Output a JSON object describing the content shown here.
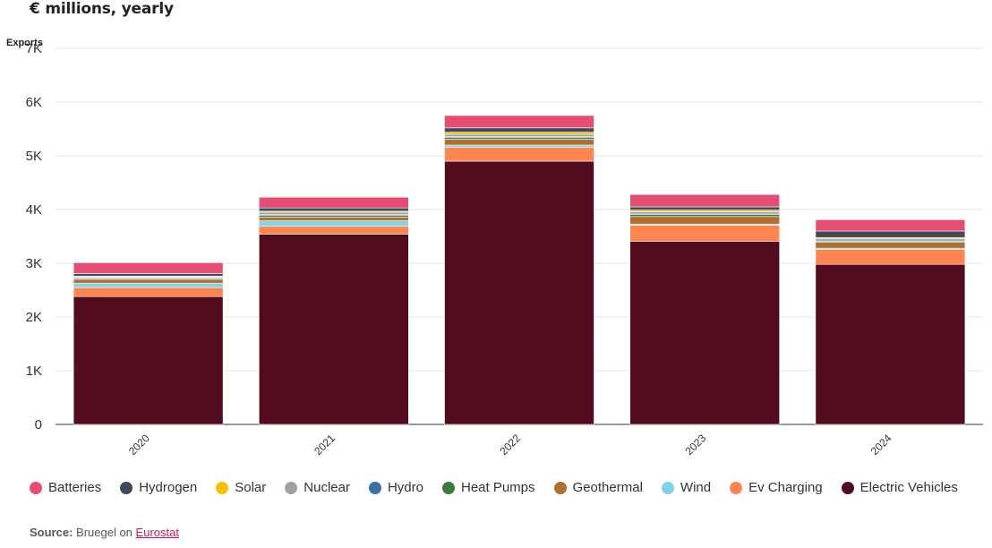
{
  "chart_data": {
    "type": "bar",
    "stacked": true,
    "title": "€ millions, yearly",
    "ylabel": "Exports",
    "ylim": [
      0,
      7000
    ],
    "yticks": [
      0,
      1000,
      2000,
      3000,
      4000,
      5000,
      6000,
      7000
    ],
    "ytick_labels": [
      "0",
      "1K",
      "2K",
      "3K",
      "4K",
      "5K",
      "6K",
      "7K"
    ],
    "categories": [
      "2020",
      "2021",
      "2022",
      "2023",
      "2024"
    ],
    "grid": true,
    "legend_position": "bottom",
    "series": [
      {
        "name": "Electric Vehicles",
        "color": "#520c1e",
        "values": [
          2380,
          3540,
          4900,
          3410,
          2980
        ]
      },
      {
        "name": "Ev Charging",
        "color": "#ff8450",
        "values": [
          170,
          150,
          260,
          300,
          280
        ]
      },
      {
        "name": "Wind",
        "color": "#7ed3e8",
        "values": [
          80,
          100,
          40,
          20,
          20
        ]
      },
      {
        "name": "Geothermal",
        "color": "#b06e30",
        "values": [
          70,
          70,
          110,
          140,
          110
        ]
      },
      {
        "name": "Heat Pumps",
        "color": "#3b7a3b",
        "values": [
          20,
          30,
          30,
          40,
          20
        ]
      },
      {
        "name": "Hydro",
        "color": "#3a6ea5",
        "values": [
          10,
          20,
          20,
          20,
          20
        ]
      },
      {
        "name": "Nuclear",
        "color": "#a0a0a0",
        "values": [
          20,
          40,
          40,
          30,
          30
        ]
      },
      {
        "name": "Solar",
        "color": "#f5bf00",
        "values": [
          10,
          20,
          40,
          30,
          20
        ]
      },
      {
        "name": "Hydrogen",
        "color": "#3d4a5e",
        "values": [
          50,
          60,
          80,
          60,
          120
        ]
      },
      {
        "name": "Batteries",
        "color": "#e54d73",
        "values": [
          200,
          200,
          230,
          230,
          210
        ]
      }
    ]
  },
  "legend": [
    {
      "label": "Batteries",
      "color": "#e54d73"
    },
    {
      "label": "Hydrogen",
      "color": "#3d4a5e"
    },
    {
      "label": "Solar",
      "color": "#f5bf00"
    },
    {
      "label": "Nuclear",
      "color": "#a0a0a0"
    },
    {
      "label": "Hydro",
      "color": "#3a6ea5"
    },
    {
      "label": "Heat Pumps",
      "color": "#3b7a3b"
    },
    {
      "label": "Geothermal",
      "color": "#b06e30"
    },
    {
      "label": "Wind",
      "color": "#7ed3e8"
    },
    {
      "label": "Ev Charging",
      "color": "#ff8450"
    },
    {
      "label": "Electric Vehicles",
      "color": "#520c1e"
    }
  ],
  "source": {
    "label": "Source:",
    "text": "Bruegel on",
    "link_text": "Eurostat"
  }
}
